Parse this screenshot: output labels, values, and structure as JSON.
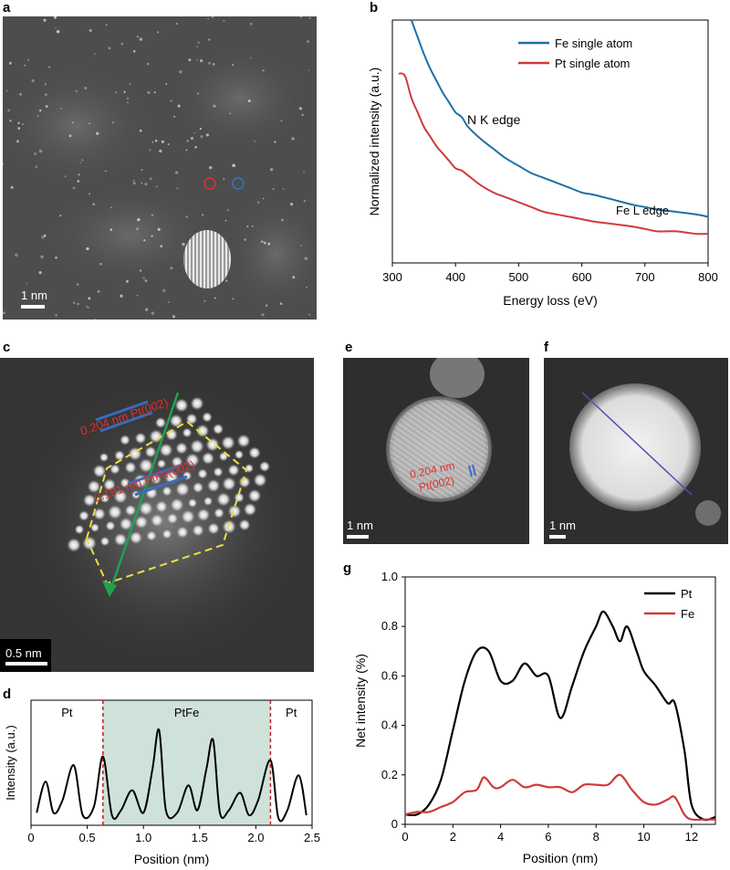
{
  "panels": {
    "a": {
      "label": "a",
      "scale": "1 nm"
    },
    "b": {
      "label": "b"
    },
    "c": {
      "label": "c",
      "scale": "0.5 nm",
      "ann1": "0.204 nm Pt(002)",
      "ann2": "0.191 nm PtFe(002)"
    },
    "d": {
      "label": "d"
    },
    "e": {
      "label": "e",
      "scale": "1 nm",
      "ann_line1": "0.204 nm",
      "ann_line2": "Pt(002)"
    },
    "f": {
      "label": "f",
      "scale": "1 nm"
    },
    "g": {
      "label": "g"
    }
  },
  "chart_data": [
    {
      "id": "b",
      "type": "line",
      "xlabel": "Energy loss (eV)",
      "ylabel": "Normalized intensity (a.u.)",
      "xlim": [
        300,
        800
      ],
      "xticks": [
        300,
        400,
        500,
        600,
        700,
        800
      ],
      "yticks": [],
      "legend_position": "top-right",
      "annotations": [
        "N K edge",
        "Fe L edge"
      ],
      "series": [
        {
          "name": "Fe single atom",
          "color": "#1f6fa6",
          "x": [
            330,
            340,
            350,
            360,
            370,
            380,
            390,
            400,
            410,
            420,
            440,
            460,
            480,
            500,
            520,
            540,
            560,
            580,
            600,
            620,
            650,
            680,
            700,
            720,
            750,
            780,
            800
          ],
          "y": [
            1.0,
            0.93,
            0.86,
            0.8,
            0.75,
            0.7,
            0.66,
            0.62,
            0.6,
            0.56,
            0.51,
            0.47,
            0.43,
            0.4,
            0.37,
            0.35,
            0.33,
            0.31,
            0.29,
            0.28,
            0.26,
            0.24,
            0.23,
            0.22,
            0.21,
            0.2,
            0.19
          ]
        },
        {
          "name": "Pt  single atom",
          "color": "#d03a3a",
          "x": [
            310,
            320,
            330,
            340,
            350,
            360,
            370,
            380,
            390,
            400,
            410,
            420,
            440,
            460,
            480,
            500,
            520,
            540,
            560,
            580,
            600,
            620,
            650,
            680,
            700,
            720,
            750,
            780,
            800
          ],
          "y": [
            0.78,
            0.77,
            0.68,
            0.62,
            0.56,
            0.52,
            0.48,
            0.45,
            0.42,
            0.39,
            0.38,
            0.36,
            0.32,
            0.29,
            0.27,
            0.25,
            0.23,
            0.21,
            0.2,
            0.19,
            0.18,
            0.17,
            0.16,
            0.15,
            0.14,
            0.13,
            0.13,
            0.12,
            0.12
          ]
        }
      ]
    },
    {
      "id": "d",
      "type": "line",
      "xlabel": "Position (nm)",
      "ylabel": "Intensity (a.u.)",
      "xlim": [
        0,
        2.5
      ],
      "xticks": [
        0,
        0.5,
        1.0,
        1.5,
        2.0,
        2.5
      ],
      "xtick_labels": [
        "0",
        "0.5",
        "1.0",
        "1.5",
        "2.0",
        "2.5"
      ],
      "regions": [
        {
          "label": "Pt",
          "x": [
            0,
            0.64
          ]
        },
        {
          "label": "PtFe",
          "x": [
            0.64,
            2.13
          ]
        },
        {
          "label": "Pt",
          "x": [
            2.13,
            2.5
          ]
        }
      ],
      "dividers": [
        0.64,
        2.13
      ],
      "series": [
        {
          "name": "",
          "color": "#000000",
          "x": [
            0.05,
            0.13,
            0.2,
            0.28,
            0.38,
            0.46,
            0.56,
            0.64,
            0.72,
            0.8,
            0.9,
            1.0,
            1.08,
            1.14,
            1.2,
            1.3,
            1.4,
            1.48,
            1.56,
            1.62,
            1.68,
            1.76,
            1.86,
            1.94,
            2.02,
            2.13,
            2.2,
            2.28,
            2.38,
            2.45
          ],
          "y": [
            0.1,
            0.35,
            0.1,
            0.2,
            0.48,
            0.08,
            0.15,
            0.55,
            0.08,
            0.12,
            0.28,
            0.1,
            0.45,
            0.76,
            0.12,
            0.1,
            0.32,
            0.12,
            0.45,
            0.68,
            0.1,
            0.12,
            0.26,
            0.08,
            0.2,
            0.52,
            0.06,
            0.12,
            0.4,
            0.08
          ]
        }
      ]
    },
    {
      "id": "g",
      "type": "line",
      "xlabel": "Position (nm)",
      "ylabel": "Net intensity (%)",
      "xlim": [
        0,
        13
      ],
      "ylim": [
        0,
        1.0
      ],
      "xticks": [
        0,
        2,
        4,
        6,
        8,
        10,
        12
      ],
      "yticks": [
        0,
        0.2,
        0.4,
        0.6,
        0.8,
        1.0
      ],
      "ytick_labels": [
        "0",
        "0.2",
        "0.4",
        "0.6",
        "0.8",
        "1.0"
      ],
      "legend_position": "top-right",
      "series": [
        {
          "name": "Pt",
          "color": "#000000",
          "x": [
            0,
            0.5,
            1,
            1.5,
            2,
            2.5,
            3,
            3.5,
            4,
            4.5,
            5,
            5.5,
            6,
            6.5,
            7,
            7.5,
            8,
            8.3,
            8.7,
            9,
            9.3,
            9.7,
            10,
            10.5,
            11,
            11.3,
            11.7,
            12,
            12.5,
            13
          ],
          "y": [
            0.04,
            0.04,
            0.08,
            0.18,
            0.38,
            0.58,
            0.7,
            0.7,
            0.58,
            0.58,
            0.65,
            0.6,
            0.6,
            0.43,
            0.56,
            0.7,
            0.8,
            0.86,
            0.8,
            0.74,
            0.8,
            0.7,
            0.62,
            0.56,
            0.49,
            0.49,
            0.3,
            0.08,
            0.02,
            0.03
          ]
        },
        {
          "name": "Fe",
          "color": "#d03a3a",
          "x": [
            0,
            0.5,
            1,
            1.5,
            2,
            2.5,
            3,
            3.3,
            3.7,
            4,
            4.5,
            5,
            5.5,
            6,
            6.5,
            7,
            7.5,
            8,
            8.5,
            9,
            9.5,
            10,
            10.5,
            11,
            11.3,
            11.7,
            12,
            12.5,
            13
          ],
          "y": [
            0.04,
            0.05,
            0.05,
            0.07,
            0.09,
            0.13,
            0.14,
            0.19,
            0.15,
            0.15,
            0.18,
            0.15,
            0.16,
            0.15,
            0.15,
            0.13,
            0.16,
            0.16,
            0.16,
            0.2,
            0.14,
            0.09,
            0.08,
            0.1,
            0.11,
            0.04,
            0.02,
            0.02,
            0.02
          ]
        }
      ]
    }
  ]
}
